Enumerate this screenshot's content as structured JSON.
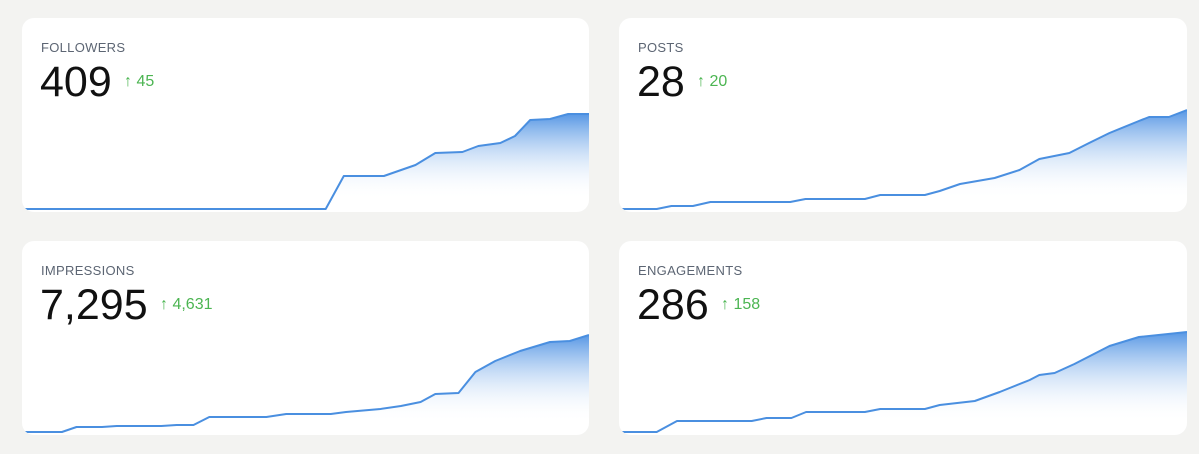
{
  "cards": [
    {
      "label": "FOLLOWERS",
      "value": "409",
      "change": "↑ 45",
      "trend": {
        "x": [
          0,
          53.4,
          56.6,
          63.7,
          69.3,
          72.8,
          77.6,
          80.4,
          84.3,
          86.9,
          89.6,
          93.1,
          96.3,
          100
        ],
        "values": [
          0,
          0,
          33,
          33,
          44,
          56,
          57,
          63,
          66,
          73,
          89,
          90,
          95,
          95
        ]
      }
    },
    {
      "label": "POSTS",
      "value": "28",
      "change": "↑ 20",
      "trend": {
        "x": [
          0,
          6.3,
          8.9,
          12.7,
          15.8,
          29.9,
          32.6,
          43.1,
          45.8,
          53.7,
          56.3,
          59.9,
          66,
          70.4,
          73.9,
          79.2,
          82.7,
          86.3,
          91.5,
          93.3,
          96.8,
          100
        ],
        "values": [
          0,
          0,
          3,
          3,
          7,
          7,
          10,
          10,
          14,
          14,
          18,
          25,
          31,
          39,
          50,
          56,
          66,
          76,
          88,
          92,
          92,
          99
        ]
      }
    },
    {
      "label": "IMPRESSIONS",
      "value": "7,295",
      "change": "↑ 4,631",
      "trend": {
        "x": [
          0,
          6.7,
          9.3,
          13.8,
          16.4,
          24.3,
          27,
          30,
          32.8,
          42.9,
          46.4,
          54.3,
          57,
          63.1,
          66.7,
          70.2,
          72.8,
          76.9,
          79.9,
          83.4,
          87.8,
          93.1,
          96.6,
          100
        ],
        "values": [
          0,
          0,
          5,
          5,
          6,
          6,
          7,
          7,
          15,
          15,
          18,
          18,
          20,
          23,
          26,
          30,
          38,
          39,
          60,
          71,
          81,
          90,
          91,
          97
        ]
      }
    },
    {
      "label": "ENGAGEMENTS",
      "value": "286",
      "change": "↑ 158",
      "trend": {
        "x": [
          0,
          6.3,
          9.9,
          23.1,
          25.7,
          30.1,
          32.7,
          43.1,
          45.8,
          53.7,
          56.3,
          62.5,
          66.9,
          72.2,
          73.9,
          76.6,
          80.1,
          86.3,
          91.5,
          100
        ],
        "values": [
          0,
          0,
          11,
          11,
          14,
          14,
          20,
          20,
          23,
          23,
          27,
          31,
          40,
          52,
          57,
          59,
          68,
          86,
          95,
          100
        ]
      }
    }
  ]
}
